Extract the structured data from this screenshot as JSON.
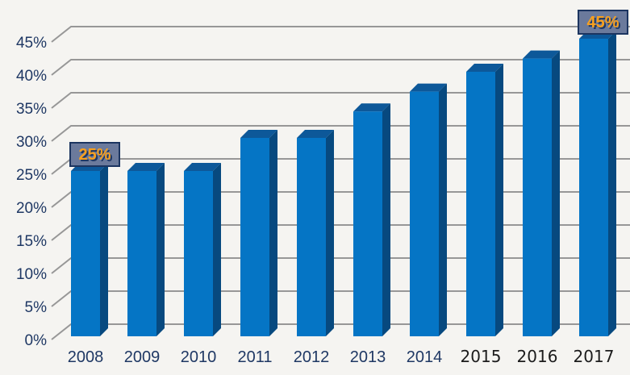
{
  "chart_data": {
    "type": "bar",
    "style": "3d-column",
    "title": "",
    "xlabel": "",
    "ylabel": "",
    "categories": [
      "2008",
      "2009",
      "2010",
      "2011",
      "2012",
      "2013",
      "2014",
      "2015",
      "2016",
      "2017"
    ],
    "values": [
      25,
      25,
      25,
      30,
      30,
      34,
      37,
      40,
      42,
      45
    ],
    "value_unit": "%",
    "ylim": [
      0,
      45
    ],
    "ytick_step": 5,
    "ytick_labels": [
      "0%",
      "5%",
      "10%",
      "15%",
      "20%",
      "25%",
      "30%",
      "35%",
      "40%",
      "45%"
    ],
    "grid": true,
    "legend": null,
    "annotations": [
      {
        "category": "2008",
        "text": "25%"
      },
      {
        "category": "2017",
        "text": "45%"
      }
    ],
    "xtick_styles": [
      "default",
      "default",
      "default",
      "default",
      "default",
      "default",
      "default",
      "edited",
      "edited",
      "edited"
    ],
    "colors": {
      "background": "#f5f4f1",
      "gridline": "#979797",
      "axis_text": "#1f3864",
      "axis_text_edited": "#1c1c1c",
      "bar_front": "#0575c5",
      "bar_top": "#0d5899",
      "bar_side": "#07497f",
      "annotation_box_fill": "#6b7a9c",
      "annotation_box_border": "#1c3560",
      "annotation_text": "#f8a01e",
      "annotation_text_shadow": "#1f3864"
    }
  }
}
